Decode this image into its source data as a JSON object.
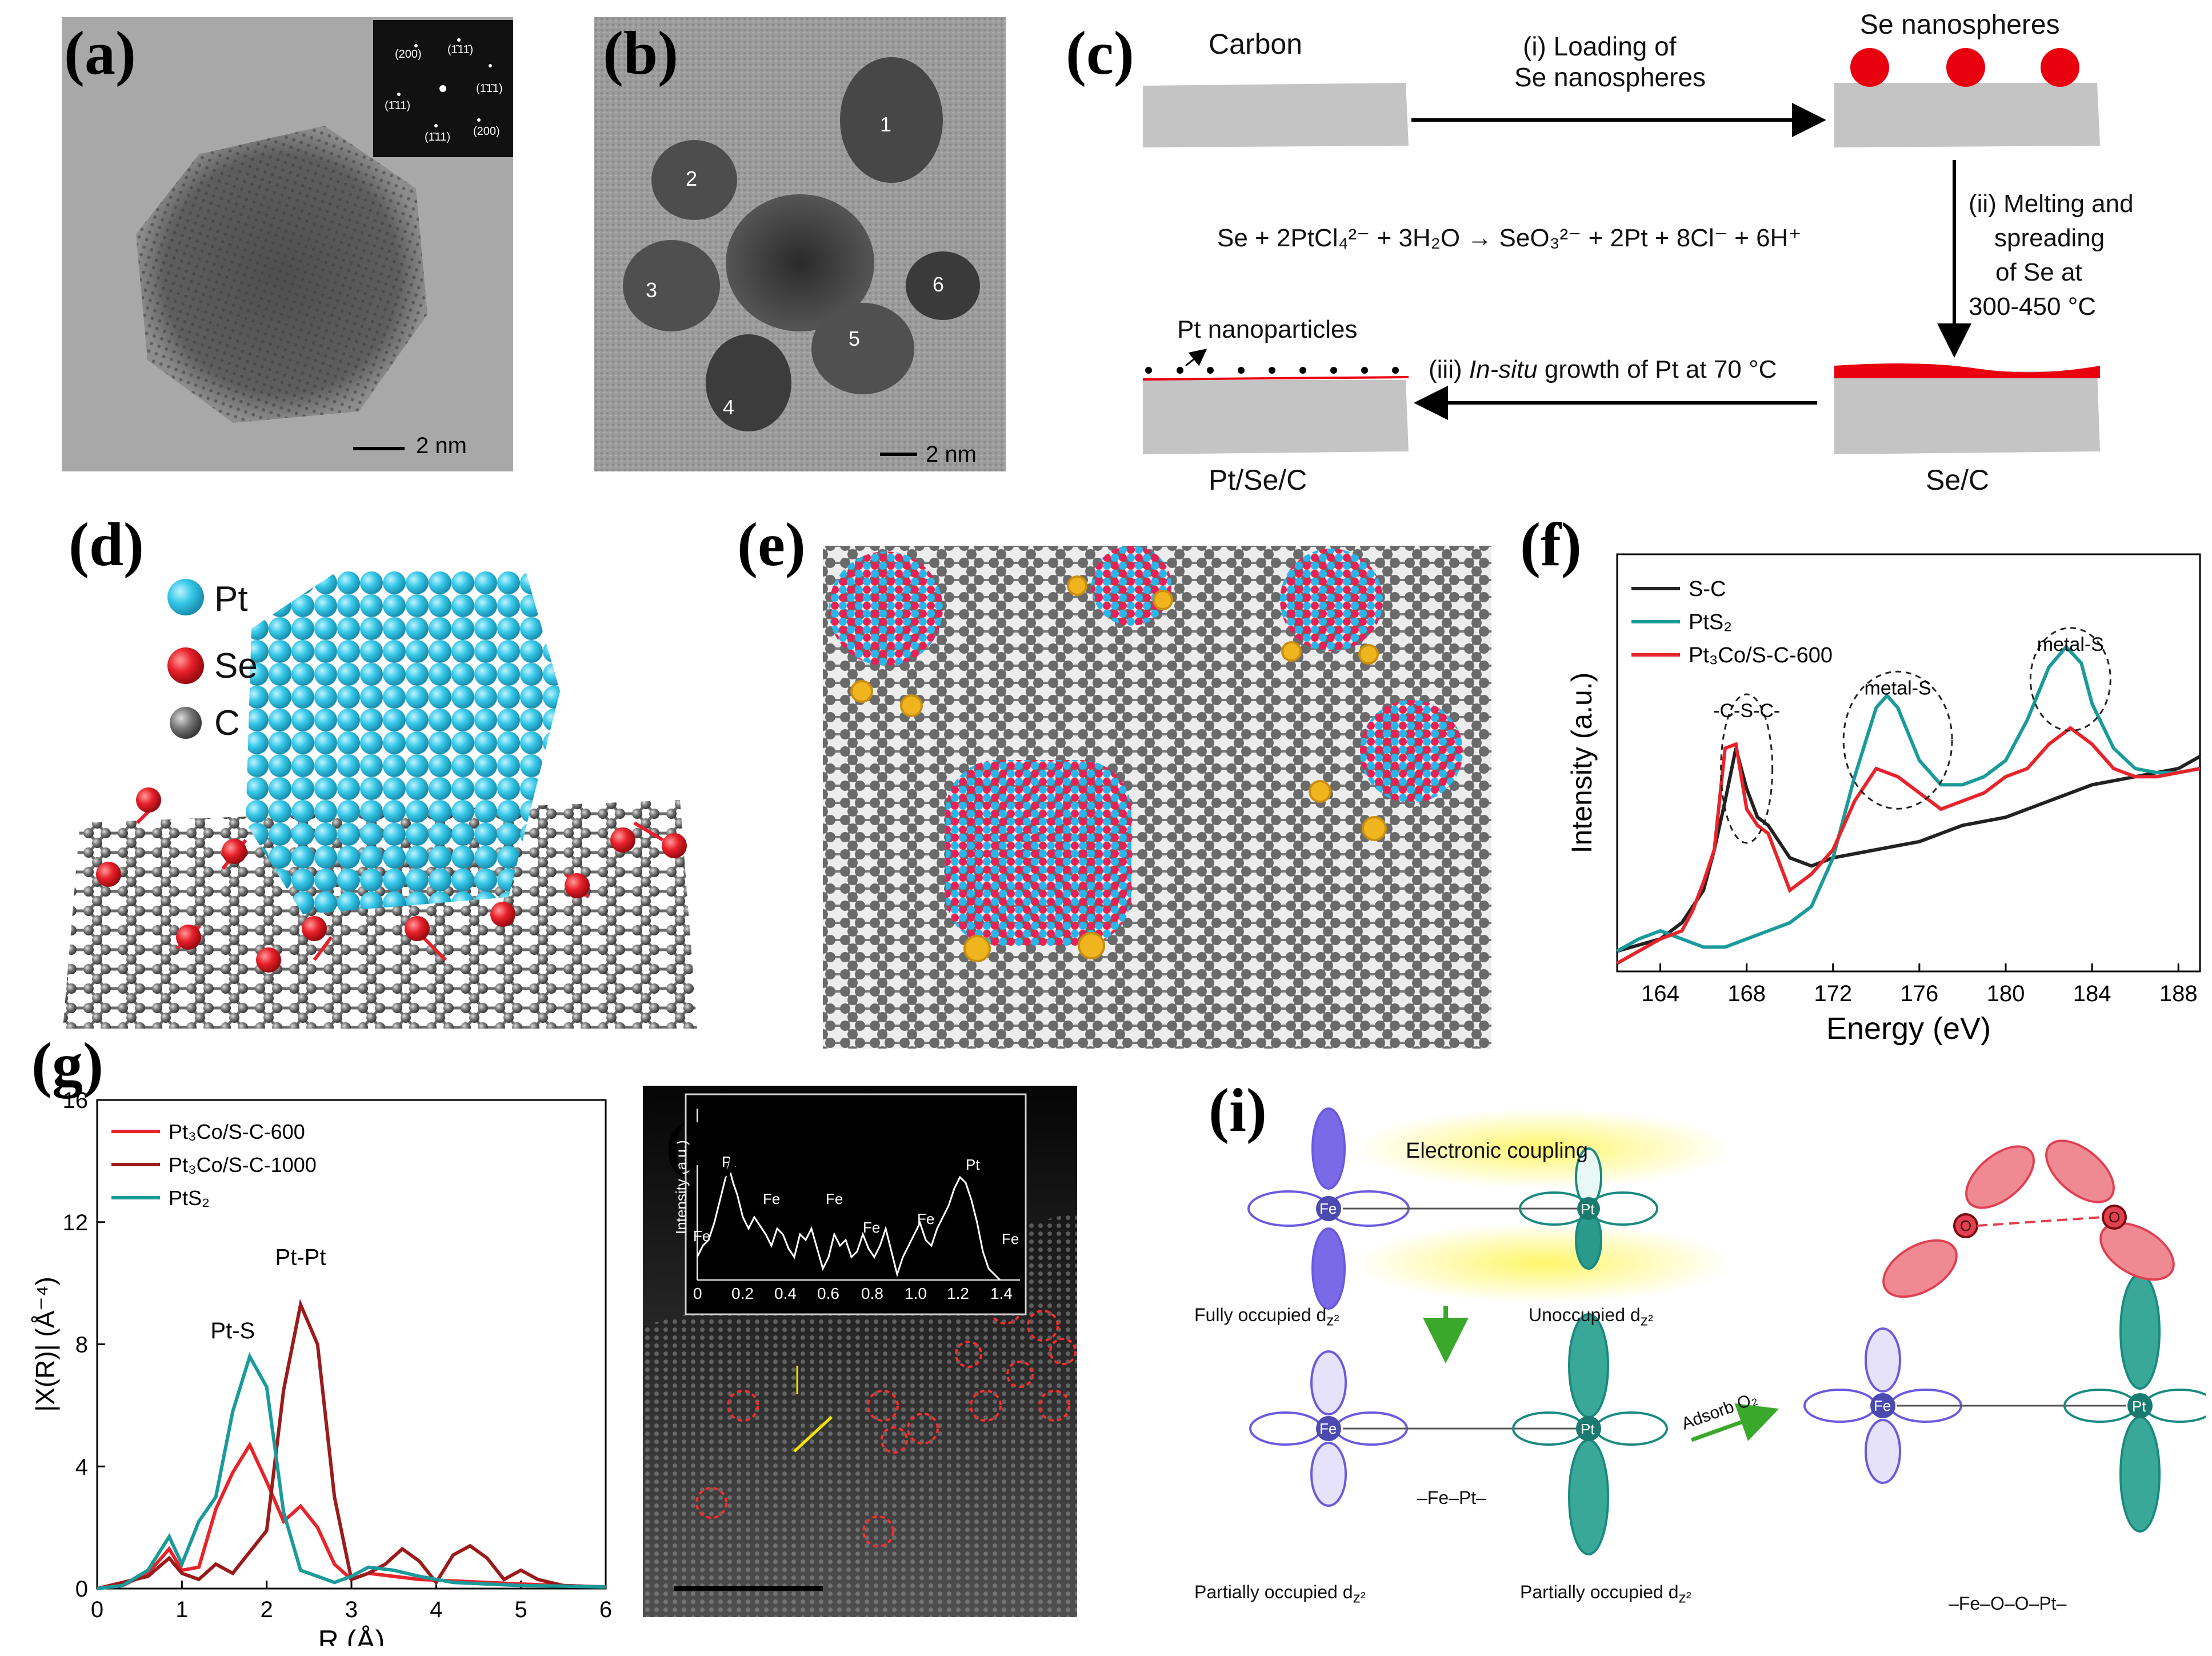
{
  "panels": {
    "a": {
      "letter": "(a)",
      "scale_bar": "2 nm",
      "fft_labels": [
        "(200)",
        "(1̄11̄)",
        "(1̄11)",
        "(1̄1̄1)",
        "(1̄11)",
        "(200)"
      ]
    },
    "b": {
      "letter": "(b)",
      "scale_bar": "2 nm",
      "numbers": [
        "1",
        "2",
        "3",
        "4",
        "5",
        "6"
      ]
    },
    "c": {
      "letter": "(c)",
      "carbon": "Carbon",
      "step1_line1": "(i) Loading of",
      "step1_line2": "Se nanospheres",
      "se_nanospheres": "Se nanospheres",
      "step2_line1": "(ii) Melting and",
      "step2_line2": "spreading",
      "step2_line3": "of Se at",
      "step2_line4": "300-450 °C",
      "equation": "Se + 2PtCl₄²⁻ + 3H₂O → SeO₃²⁻ + 2Pt + 8Cl⁻ + 6H⁺",
      "pt_nanoparticles": "Pt nanoparticles",
      "step3_prefix": "(iii) ",
      "step3_italic": "In-situ",
      "step3_suffix": " growth of Pt at 70 °C",
      "pt_se_c": "Pt/Se/C",
      "se_c": "Se/C"
    },
    "d": {
      "letter": "(d)",
      "legend": [
        "Pt",
        "Se",
        "C"
      ],
      "colors": {
        "Pt": "#36c8e8",
        "Se": "#e8202a",
        "C": "#7a7a7a"
      }
    },
    "e": {
      "letter": "(e)"
    },
    "f": {
      "letter": "(f)"
    },
    "g": {
      "letter": "(g)"
    },
    "h": {
      "letter": "(h)",
      "inset_ylabel": "Intensity (a.u.)",
      "inset_ticks": [
        "0",
        "0.2",
        "0.4",
        "0.6",
        "0.8",
        "1.0",
        "1.2",
        "1.4"
      ],
      "inset_peaks": [
        "Fe",
        "Pt",
        "Fe",
        "Fe",
        "Fe",
        "Fe",
        "Pt",
        "Fe"
      ]
    },
    "i": {
      "letter": "(i)",
      "electronic_coupling": "Electronic coupling",
      "fully_occupied": "Fully occupied d",
      "unoccupied": "Unoccupied d",
      "partially_occupied_left": "Partially occupied d",
      "partially_occupied_right": "Partially occupied d",
      "z2": "z²",
      "fe": "Fe",
      "pt": "Pt",
      "o": "O",
      "fe_pt": "–Fe–Pt–",
      "adsorb": "Adsorb O₂",
      "fe_o_o_pt": "–Fe–O–O–Pt–"
    }
  },
  "chart_data": [
    {
      "panel": "f",
      "type": "line",
      "xlabel": "Energy (eV)",
      "ylabel": "Intensity (a.u.)",
      "xlim": [
        162,
        189
      ],
      "xticks": [
        164,
        168,
        172,
        176,
        180,
        184,
        188
      ],
      "legend": "top-left",
      "annotations": [
        "-C-S-C-",
        "metal-S",
        "metal-S"
      ],
      "series": [
        {
          "name": "S-C",
          "color": "#222222",
          "x": [
            162,
            164,
            165,
            166,
            166.5,
            167,
            167.5,
            168,
            168.5,
            169,
            170,
            171,
            172,
            174,
            176,
            178,
            180,
            182,
            184,
            186,
            188,
            189
          ],
          "y": [
            0.05,
            0.08,
            0.12,
            0.2,
            0.3,
            0.42,
            0.55,
            0.45,
            0.38,
            0.36,
            0.28,
            0.26,
            0.28,
            0.3,
            0.32,
            0.36,
            0.38,
            0.42,
            0.46,
            0.48,
            0.5,
            0.53
          ]
        },
        {
          "name": "PtS₂",
          "color": "#1a9a9a",
          "x": [
            162,
            163,
            164,
            165,
            166,
            167,
            168,
            169,
            170,
            171,
            172,
            173,
            174,
            174.5,
            175,
            176,
            177,
            178,
            179,
            180,
            181,
            182,
            182.8,
            183.5,
            184,
            185,
            186,
            187,
            188,
            189
          ],
          "y": [
            0.05,
            0.08,
            0.1,
            0.08,
            0.06,
            0.06,
            0.08,
            0.1,
            0.12,
            0.16,
            0.28,
            0.48,
            0.65,
            0.68,
            0.65,
            0.52,
            0.46,
            0.46,
            0.48,
            0.52,
            0.62,
            0.75,
            0.8,
            0.76,
            0.66,
            0.55,
            0.5,
            0.49,
            0.49,
            0.5
          ]
        },
        {
          "name": "Pt₃Co/S-C-600",
          "color": "#e8232a",
          "x": [
            162,
            163,
            164,
            165,
            165.5,
            166,
            166.5,
            167,
            167.5,
            168,
            168.5,
            169,
            170,
            171,
            172,
            173,
            174,
            175,
            176,
            177,
            178,
            179,
            180,
            181,
            182,
            183,
            184,
            185,
            186,
            187,
            188,
            189
          ],
          "y": [
            0.02,
            0.05,
            0.08,
            0.1,
            0.15,
            0.22,
            0.3,
            0.55,
            0.56,
            0.4,
            0.36,
            0.34,
            0.2,
            0.24,
            0.3,
            0.42,
            0.5,
            0.48,
            0.44,
            0.4,
            0.42,
            0.44,
            0.48,
            0.5,
            0.56,
            0.6,
            0.56,
            0.5,
            0.48,
            0.48,
            0.49,
            0.5
          ]
        }
      ]
    },
    {
      "panel": "g",
      "type": "line",
      "xlabel": "R (Å)",
      "ylabel": "|X(R)| (Å⁻⁴)",
      "xlim": [
        0,
        6
      ],
      "ylim": [
        0,
        16
      ],
      "xticks": [
        0,
        1,
        2,
        3,
        4,
        5,
        6
      ],
      "yticks": [
        0,
        4,
        8,
        12,
        16
      ],
      "legend": "top-left",
      "annotations": [
        {
          "text": "Pt-S",
          "x": 1.6,
          "y": 8.2
        },
        {
          "text": "Pt-Pt",
          "x": 2.4,
          "y": 10.6
        }
      ],
      "series": [
        {
          "name": "Pt₃Co/S-C-600",
          "color": "#e8232a",
          "x": [
            0,
            0.3,
            0.6,
            0.85,
            1.0,
            1.2,
            1.4,
            1.6,
            1.8,
            2.0,
            2.2,
            2.4,
            2.6,
            2.8,
            3.0,
            3.2,
            3.5,
            3.8,
            4.2,
            4.6,
            5.0,
            5.5,
            6.0
          ],
          "y": [
            0,
            0.1,
            0.5,
            1.3,
            0.6,
            0.7,
            2.6,
            3.8,
            4.7,
            3.5,
            2.2,
            2.7,
            2.0,
            0.8,
            0.3,
            0.5,
            0.4,
            0.3,
            0.25,
            0.2,
            0.15,
            0.1,
            0.05
          ]
        },
        {
          "name": "Pt₃Co/S-C-1000",
          "color": "#9b1b1b",
          "x": [
            0,
            0.3,
            0.6,
            0.85,
            1.0,
            1.2,
            1.4,
            1.6,
            1.8,
            2.0,
            2.2,
            2.4,
            2.6,
            2.8,
            3.0,
            3.2,
            3.4,
            3.6,
            3.8,
            4.0,
            4.2,
            4.4,
            4.6,
            4.8,
            5.0,
            5.2,
            5.5,
            6.0
          ],
          "y": [
            0,
            0.2,
            0.4,
            1.0,
            0.5,
            0.3,
            0.8,
            0.5,
            1.2,
            1.9,
            6.5,
            9.3,
            8.0,
            3.0,
            0.3,
            0.5,
            0.8,
            1.3,
            0.9,
            0.2,
            1.1,
            1.4,
            1.0,
            0.3,
            0.6,
            0.3,
            0.1,
            0.05
          ]
        },
        {
          "name": "PtS₂",
          "color": "#1a9a9a",
          "x": [
            0,
            0.3,
            0.6,
            0.85,
            1.0,
            1.2,
            1.4,
            1.6,
            1.8,
            2.0,
            2.2,
            2.4,
            2.6,
            2.8,
            3.0,
            3.2,
            3.5,
            3.8,
            4.2,
            4.6,
            5.0,
            5.5,
            6.0
          ],
          "y": [
            0,
            0.1,
            0.6,
            1.7,
            0.8,
            2.2,
            3.0,
            5.8,
            7.6,
            6.6,
            2.5,
            0.6,
            0.4,
            0.2,
            0.4,
            0.7,
            0.6,
            0.4,
            0.2,
            0.15,
            0.1,
            0.08,
            0.05
          ]
        }
      ]
    }
  ]
}
